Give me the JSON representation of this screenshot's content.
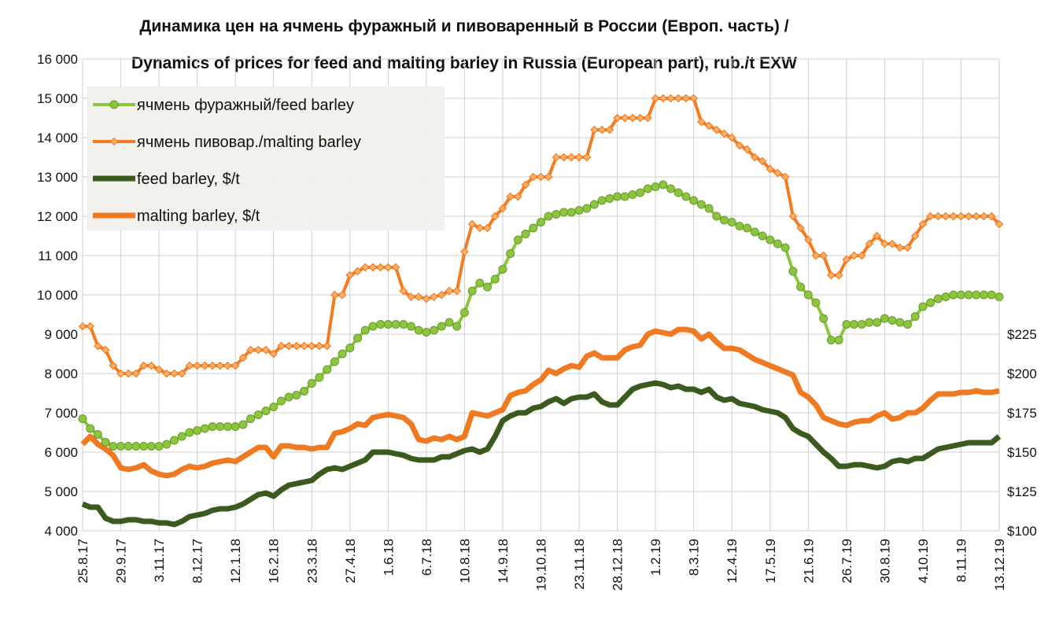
{
  "chart_data": {
    "type": "line",
    "title": "Динамика цен на ячмень фуражный и пивоваренный в России (Европ. часть) /",
    "subtitle": "Dynamics of prices for feed and malting barley in Russia (European part), rub./t EXW",
    "categories": [
      "25.8.17",
      null,
      null,
      null,
      null,
      "29.9.17",
      null,
      null,
      null,
      null,
      "3.11.17",
      null,
      null,
      null,
      null,
      "8.12.17",
      null,
      null,
      null,
      null,
      "12.1.18",
      null,
      null,
      null,
      null,
      "16.2.18",
      null,
      null,
      null,
      null,
      "23.3.18",
      null,
      null,
      null,
      null,
      "27.4.18",
      null,
      null,
      null,
      null,
      "1.6.18",
      null,
      null,
      null,
      null,
      "6.7.18",
      null,
      null,
      null,
      null,
      "10.8.18",
      null,
      null,
      null,
      null,
      "14.9.18",
      null,
      null,
      null,
      null,
      "19.10.18",
      null,
      null,
      null,
      null,
      "23.11.18",
      null,
      null,
      null,
      null,
      "28.12.18",
      null,
      null,
      null,
      null,
      "1.2.19",
      null,
      null,
      null,
      null,
      "8.3.19",
      null,
      null,
      null,
      null,
      "12.4.19",
      null,
      null,
      null,
      null,
      "17.5.19",
      null,
      null,
      null,
      null,
      "21.6.19",
      null,
      null,
      null,
      null,
      "26.7.19",
      null,
      null,
      null,
      null,
      "30.8.19",
      null,
      null,
      null,
      null,
      "4.10.19",
      null,
      null,
      null,
      null,
      "8.11.19",
      null,
      null,
      null,
      null,
      "13.12.19"
    ],
    "series": [
      {
        "name": "ячмень фуражный/feed barley",
        "color": "#8cc63e",
        "marker": "circle",
        "values": [
          6850,
          6600,
          6450,
          6250,
          6150,
          6150,
          6150,
          6150,
          6150,
          6150,
          6150,
          6200,
          6300,
          6400,
          6500,
          6550,
          6600,
          6650,
          6650,
          6650,
          6650,
          6700,
          6850,
          6950,
          7050,
          7150,
          7300,
          7400,
          7450,
          7550,
          7750,
          7900,
          8100,
          8300,
          8500,
          8650,
          8900,
          9100,
          9200,
          9250,
          9250,
          9250,
          9250,
          9200,
          9100,
          9050,
          9100,
          9200,
          9300,
          9200,
          9550,
          10100,
          10300,
          10200,
          10400,
          10650,
          11050,
          11400,
          11550,
          11700,
          11850,
          12000,
          12050,
          12100,
          12100,
          12150,
          12200,
          12300,
          12400,
          12450,
          12500,
          12500,
          12550,
          12600,
          12700,
          12750,
          12800,
          12700,
          12600,
          12500,
          12400,
          12300,
          12200,
          12000,
          11900,
          11850,
          11750,
          11700,
          11600,
          11500,
          11400,
          11300,
          11200,
          10600,
          10200,
          10000,
          9800,
          9400,
          8850,
          8850,
          9250,
          9250,
          9250,
          9300,
          9300,
          9400,
          9350,
          9300,
          9250,
          9450,
          9700,
          9800,
          9900,
          9950,
          10000,
          10000,
          10000,
          10000,
          10000,
          10000,
          9950
        ]
      },
      {
        "name": "ячмень пивовар./malting barley",
        "color": "#f47b20",
        "marker": "diamond",
        "values": [
          9200,
          9200,
          8700,
          8600,
          8200,
          8000,
          8000,
          8000,
          8200,
          8200,
          8100,
          8000,
          8000,
          8000,
          8200,
          8200,
          8200,
          8200,
          8200,
          8200,
          8200,
          8400,
          8600,
          8600,
          8600,
          8500,
          8700,
          8700,
          8700,
          8700,
          8700,
          8700,
          8700,
          10000,
          10000,
          10500,
          10600,
          10700,
          10700,
          10700,
          10700,
          10700,
          10100,
          9950,
          9950,
          9900,
          9950,
          10000,
          10100,
          10100,
          11100,
          11800,
          11700,
          11700,
          12000,
          12200,
          12500,
          12500,
          12800,
          13000,
          13000,
          13000,
          13500,
          13500,
          13500,
          13500,
          13500,
          14200,
          14200,
          14200,
          14500,
          14500,
          14500,
          14500,
          14500,
          15000,
          15000,
          15000,
          15000,
          15000,
          15000,
          14400,
          14300,
          14200,
          14100,
          14000,
          13800,
          13700,
          13500,
          13400,
          13200,
          13100,
          13000,
          12000,
          11700,
          11400,
          11000,
          11000,
          10500,
          10500,
          10900,
          11000,
          11000,
          11300,
          11500,
          11300,
          11300,
          11200,
          11200,
          11500,
          11800,
          12000,
          12000,
          12000,
          12000,
          12000,
          12000,
          12000,
          12000,
          12000,
          11800
        ]
      },
      {
        "name": "feed barley, $/t",
        "color": "#3b5a1d",
        "axis": "y2",
        "values": [
          117,
          115,
          115,
          108,
          106,
          106,
          107,
          107,
          106,
          106,
          105,
          105,
          104,
          106,
          109,
          110,
          111,
          113,
          114,
          114,
          115,
          117,
          120,
          123,
          124,
          122,
          126,
          129,
          130,
          131,
          132,
          136,
          139,
          140,
          139,
          141,
          143,
          145,
          150,
          150,
          150,
          149,
          148,
          146,
          145,
          145,
          145,
          147,
          147,
          149,
          151,
          152,
          150,
          152,
          160,
          170,
          173,
          175,
          175,
          178,
          179,
          182,
          184,
          181,
          184,
          185,
          185,
          187,
          182,
          180,
          180,
          185,
          190,
          192,
          193,
          194,
          193,
          191,
          192,
          190,
          190,
          188,
          190,
          185,
          183,
          184,
          181,
          180,
          179,
          177,
          176,
          175,
          172,
          165,
          162,
          160,
          155,
          150,
          146,
          141,
          141,
          142,
          142,
          141,
          140,
          141,
          144,
          145,
          144,
          146,
          146,
          149,
          152,
          153,
          154,
          155,
          156,
          156,
          156,
          156,
          160
        ]
      },
      {
        "name": "malting barley, $/t",
        "color": "#f07a21",
        "axis": "y2",
        "values": [
          155,
          160,
          155,
          152,
          148,
          140,
          139,
          140,
          142,
          138,
          136,
          135,
          136,
          139,
          141,
          140,
          141,
          143,
          144,
          145,
          144,
          147,
          150,
          153,
          153,
          147,
          154,
          154,
          153,
          153,
          152,
          153,
          153,
          162,
          163,
          165,
          168,
          167,
          172,
          173,
          174,
          173,
          172,
          168,
          158,
          157,
          159,
          158,
          160,
          158,
          160,
          175,
          174,
          173,
          175,
          177,
          186,
          188,
          189,
          193,
          196,
          202,
          200,
          203,
          205,
          204,
          211,
          213,
          210,
          210,
          210,
          215,
          217,
          218,
          225,
          227,
          226,
          225,
          228,
          228,
          227,
          222,
          225,
          220,
          216,
          216,
          215,
          212,
          209,
          207,
          205,
          203,
          201,
          199,
          188,
          185,
          180,
          172,
          170,
          168,
          167,
          169,
          170,
          170,
          173,
          175,
          171,
          172,
          175,
          175,
          178,
          183,
          187,
          187,
          187,
          188,
          188,
          189,
          188,
          188,
          189
        ]
      }
    ],
    "ylim": [
      4000,
      16000
    ],
    "yticks": [
      {
        "value": 4000,
        "label": "4 000"
      },
      {
        "value": 5000,
        "label": "5 000"
      },
      {
        "value": 6000,
        "label": "6 000"
      },
      {
        "value": 7000,
        "label": "7 000"
      },
      {
        "value": 8000,
        "label": "8 000"
      },
      {
        "value": 9000,
        "label": "9 000"
      },
      {
        "value": 10000,
        "label": "10 000"
      },
      {
        "value": 11000,
        "label": "11 000"
      },
      {
        "value": 12000,
        "label": "12 000"
      },
      {
        "value": 13000,
        "label": "13 000"
      },
      {
        "value": 14000,
        "label": "14 000"
      },
      {
        "value": 15000,
        "label": "15 000"
      },
      {
        "value": 16000,
        "label": "16 000"
      }
    ],
    "y2lim": [
      100,
      400
    ],
    "y2ticks": [
      {
        "value": 100,
        "label": "$100"
      },
      {
        "value": 125,
        "label": "$125"
      },
      {
        "value": 150,
        "label": "$150"
      },
      {
        "value": 175,
        "label": "$175"
      },
      {
        "value": 200,
        "label": "$200"
      },
      {
        "value": 225,
        "label": "$225"
      }
    ],
    "grid": true,
    "legend": "top-left"
  }
}
